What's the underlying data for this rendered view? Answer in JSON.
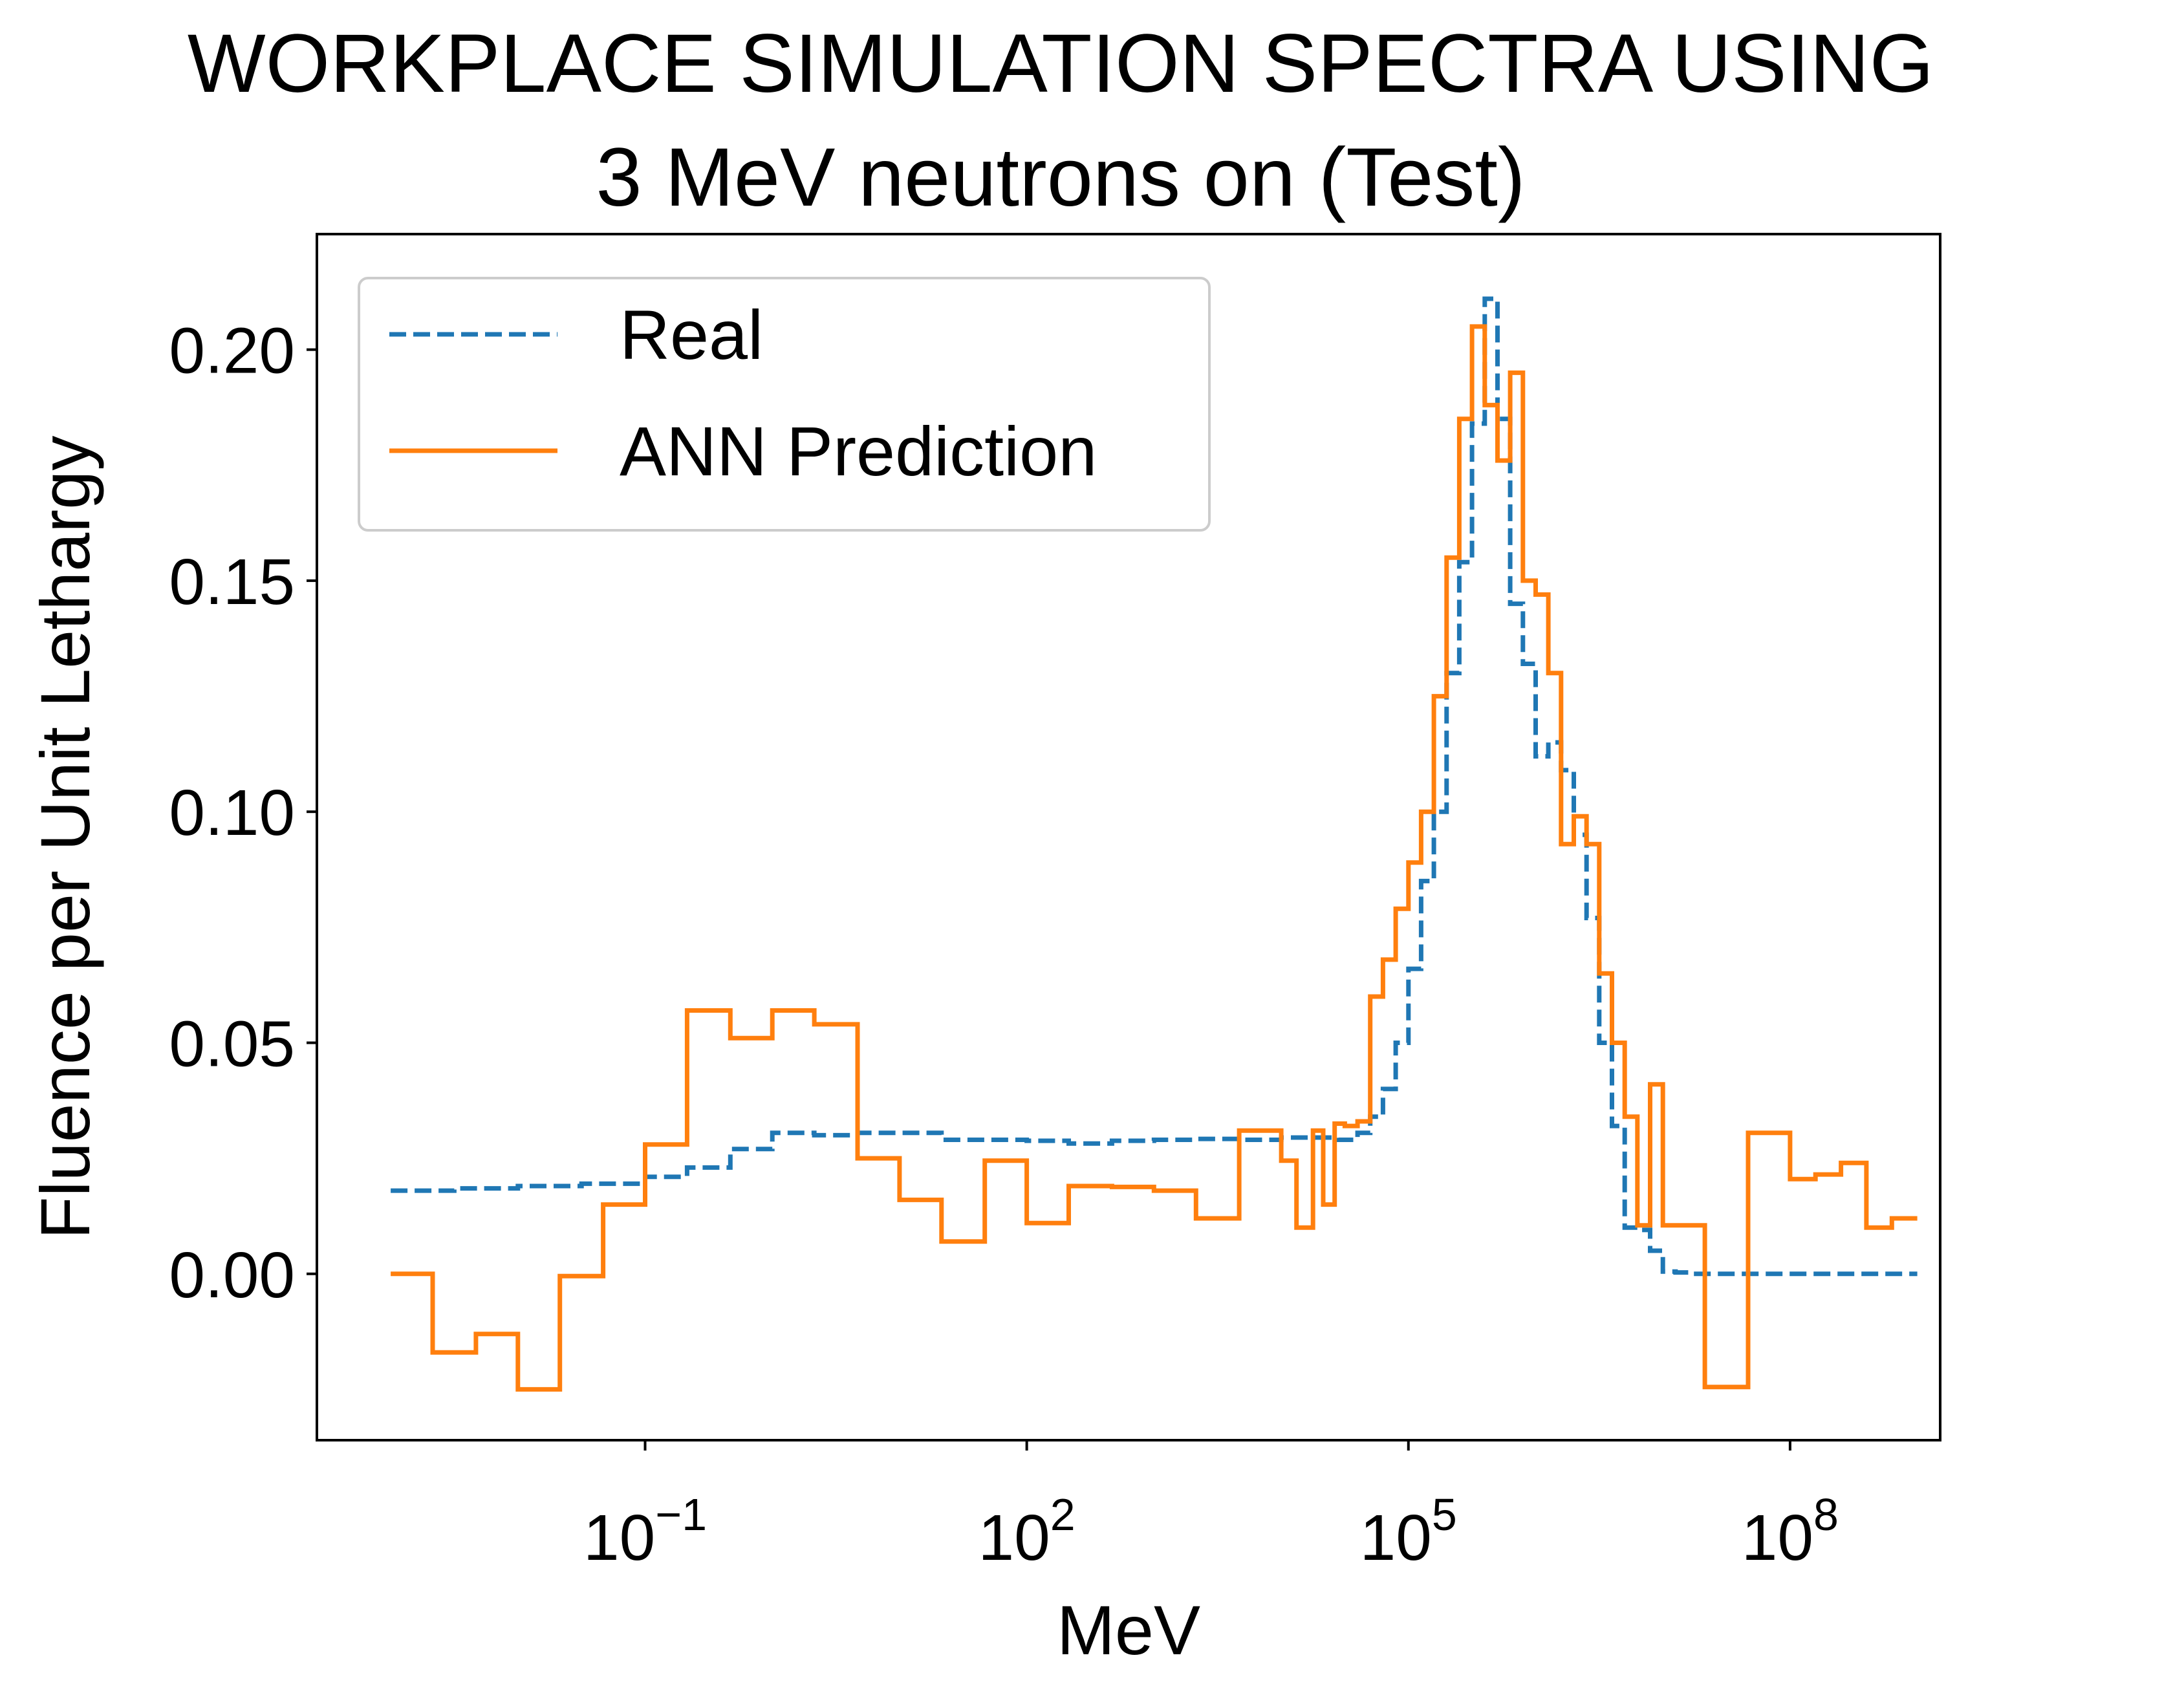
{
  "chart_data": {
    "type": "line",
    "step": true,
    "title_lines": [
      "WORKPLACE SIMULATION SPECTRA USING",
      "3 MeV neutrons on (Test)"
    ],
    "xlabel": "MeV",
    "ylabel": "Fluence per Unit Lethargy",
    "x_scale": "log",
    "xlim_log10": [
      -3.58,
      9.18
    ],
    "ylim": [
      -0.036,
      0.225
    ],
    "x_ticks": [
      {
        "base": "10",
        "exp": "−1",
        "log10": -1
      },
      {
        "base": "10",
        "exp": "2",
        "log10": 2
      },
      {
        "base": "10",
        "exp": "5",
        "log10": 5
      },
      {
        "base": "10",
        "exp": "8",
        "log10": 8
      }
    ],
    "y_ticks": [
      "0.00",
      "0.05",
      "0.10",
      "0.15",
      "0.20"
    ],
    "y_tick_values": [
      0.0,
      0.05,
      0.1,
      0.15,
      0.2
    ],
    "legend_position": "upper left",
    "grid": false,
    "series": [
      {
        "name": "Real",
        "color": "#1f77b4",
        "style": "dashed",
        "x_log10": [
          -3.0,
          -2.5,
          -2.0,
          -1.5,
          -1.0,
          -0.67,
          -0.33,
          0.0,
          0.33,
          0.67,
          1.0,
          1.33,
          1.67,
          2.0,
          2.33,
          2.67,
          3.0,
          3.33,
          3.67,
          4.0,
          4.3,
          4.45,
          4.6,
          4.7,
          4.8,
          4.9,
          5.0,
          5.1,
          5.2,
          5.3,
          5.4,
          5.5,
          5.6,
          5.7,
          5.8,
          5.9,
          6.0,
          6.1,
          6.2,
          6.3,
          6.4,
          6.5,
          6.6,
          6.7,
          6.8,
          6.9,
          7.0,
          7.1,
          7.2,
          7.3,
          7.5,
          8.0,
          8.5,
          9.0
        ],
        "y": [
          0.018,
          0.0185,
          0.019,
          0.0195,
          0.021,
          0.023,
          0.027,
          0.0305,
          0.03,
          0.0305,
          0.0305,
          0.029,
          0.029,
          0.0288,
          0.0282,
          0.0288,
          0.029,
          0.0292,
          0.029,
          0.0295,
          0.0295,
          0.029,
          0.0305,
          0.034,
          0.04,
          0.05,
          0.066,
          0.085,
          0.1,
          0.13,
          0.154,
          0.184,
          0.211,
          0.185,
          0.145,
          0.132,
          0.112,
          0.115,
          0.109,
          0.095,
          0.077,
          0.05,
          0.032,
          0.01,
          0.0095,
          0.005,
          0.0005,
          0.0003,
          0.0,
          0.0,
          0.0,
          0.0,
          0.0,
          0.0
        ]
      },
      {
        "name": "ANN Prediction",
        "color": "#ff7f0e",
        "style": "solid",
        "x_log10": [
          -3.0,
          -2.67,
          -2.33,
          -2.0,
          -1.67,
          -1.33,
          -1.0,
          -0.67,
          -0.33,
          0.0,
          0.33,
          0.67,
          1.0,
          1.33,
          1.67,
          2.0,
          2.33,
          2.67,
          3.0,
          3.33,
          3.67,
          4.0,
          4.12,
          4.25,
          4.33,
          4.42,
          4.5,
          4.6,
          4.7,
          4.8,
          4.9,
          5.0,
          5.1,
          5.2,
          5.3,
          5.4,
          5.5,
          5.6,
          5.7,
          5.8,
          5.9,
          6.0,
          6.1,
          6.2,
          6.3,
          6.4,
          6.5,
          6.6,
          6.7,
          6.8,
          6.9,
          7.0,
          7.33,
          7.67,
          8.0,
          8.2,
          8.4,
          8.6,
          8.8,
          9.0
        ],
        "y": [
          0.0,
          -0.017,
          -0.013,
          -0.025,
          -0.0005,
          0.015,
          0.028,
          0.057,
          0.051,
          0.057,
          0.054,
          0.025,
          0.016,
          0.007,
          0.0245,
          0.011,
          0.019,
          0.0188,
          0.018,
          0.012,
          0.031,
          0.0245,
          0.01,
          0.031,
          0.015,
          0.0325,
          0.032,
          0.033,
          0.06,
          0.068,
          0.079,
          0.089,
          0.1,
          0.125,
          0.155,
          0.185,
          0.205,
          0.188,
          0.176,
          0.195,
          0.15,
          0.147,
          0.13,
          0.093,
          0.099,
          0.093,
          0.065,
          0.05,
          0.034,
          0.0105,
          0.041,
          0.0105,
          -0.0245,
          0.0305,
          0.0205,
          0.0215,
          0.024,
          0.01,
          0.012,
          0.012
        ]
      }
    ]
  }
}
